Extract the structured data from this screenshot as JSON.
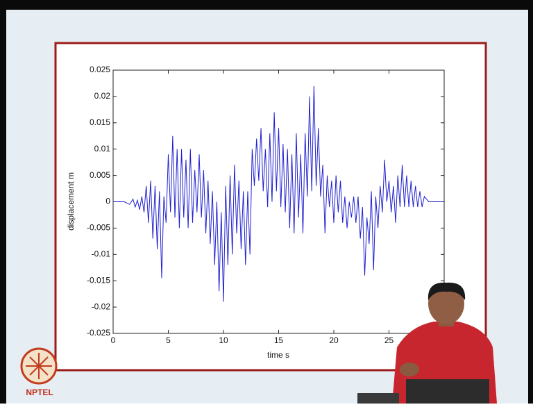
{
  "chart_data": {
    "type": "line",
    "xlabel": "time s",
    "ylabel": "displacement m",
    "x": [
      0,
      1,
      1.5,
      1.8,
      2.0,
      2.2,
      2.4,
      2.6,
      2.8,
      3.0,
      3.2,
      3.4,
      3.6,
      3.8,
      4.0,
      4.2,
      4.4,
      4.6,
      4.8,
      5.0,
      5.2,
      5.4,
      5.6,
      5.8,
      6.0,
      6.2,
      6.4,
      6.6,
      6.8,
      7.0,
      7.2,
      7.4,
      7.6,
      7.8,
      8.0,
      8.2,
      8.4,
      8.6,
      8.8,
      9.0,
      9.2,
      9.4,
      9.6,
      9.8,
      10.0,
      10.2,
      10.4,
      10.6,
      10.8,
      11.0,
      11.2,
      11.4,
      11.6,
      11.8,
      12.0,
      12.2,
      12.4,
      12.6,
      12.8,
      13.0,
      13.2,
      13.4,
      13.6,
      13.8,
      14.0,
      14.2,
      14.4,
      14.6,
      14.8,
      15.0,
      15.2,
      15.4,
      15.6,
      15.8,
      16.0,
      16.2,
      16.4,
      16.6,
      16.8,
      17.0,
      17.2,
      17.4,
      17.6,
      17.8,
      18.0,
      18.2,
      18.4,
      18.6,
      18.8,
      19.0,
      19.2,
      19.4,
      19.6,
      19.8,
      20.0,
      20.2,
      20.4,
      20.6,
      20.8,
      21.0,
      21.2,
      21.4,
      21.6,
      21.8,
      22.0,
      22.2,
      22.4,
      22.6,
      22.8,
      23.0,
      23.2,
      23.4,
      23.6,
      23.8,
      24.0,
      24.2,
      24.4,
      24.6,
      24.8,
      25.0,
      25.2,
      25.4,
      25.6,
      25.8,
      26.0,
      26.2,
      26.4,
      26.6,
      26.8,
      27.0,
      27.2,
      27.4,
      27.6,
      27.8,
      28.0,
      28.2,
      28.6,
      30
    ],
    "series": [
      {
        "color": "#2020d0",
        "values": [
          0,
          0,
          -0.0005,
          0.0005,
          -0.001,
          0.0003,
          -0.0015,
          0.001,
          -0.002,
          0.003,
          -0.004,
          0.004,
          -0.007,
          0.003,
          -0.009,
          0.002,
          -0.0145,
          0.001,
          -0.004,
          0.009,
          -0.002,
          0.0125,
          -0.003,
          0.01,
          -0.005,
          0.01,
          -0.003,
          0.008,
          -0.005,
          0.01,
          -0.004,
          0.006,
          -0.002,
          0.009,
          -0.003,
          0.006,
          -0.006,
          0.004,
          -0.008,
          0.002,
          -0.012,
          0,
          -0.017,
          -0.002,
          -0.019,
          0.003,
          -0.012,
          0.005,
          -0.01,
          0.007,
          -0.006,
          0.004,
          -0.009,
          0.002,
          -0.012,
          0.002,
          -0.01,
          0.01,
          0.003,
          0.012,
          0.004,
          0.014,
          0.002,
          0.01,
          -0.001,
          0.013,
          0,
          0.017,
          0.002,
          0.014,
          -0.001,
          0.011,
          -0.002,
          0.01,
          -0.005,
          0.009,
          -0.006,
          0.013,
          -0.003,
          0.009,
          -0.006,
          0.013,
          0.001,
          0.02,
          0.002,
          0.022,
          0.003,
          0.014,
          0.001,
          0.007,
          -0.006,
          0.005,
          -0.001,
          0.004,
          -0.004,
          0.005,
          -0.002,
          0.004,
          -0.004,
          0.001,
          -0.005,
          0,
          -0.003,
          0.001,
          -0.004,
          0.001,
          -0.007,
          -0.001,
          -0.014,
          -0.003,
          -0.008,
          0.002,
          -0.013,
          0.001,
          -0.005,
          0.003,
          -0.002,
          0.008,
          0,
          0.004,
          -0.002,
          0.003,
          -0.004,
          0.005,
          -0.001,
          0.007,
          -0.001,
          0.005,
          -0.001,
          0.004,
          -0.001,
          0.003,
          -0.001,
          0.002,
          -0.001,
          0.001,
          0,
          0
        ]
      }
    ],
    "xlim": [
      0,
      30
    ],
    "xticks": [
      0,
      5,
      10,
      15,
      20,
      25
    ],
    "ylim": [
      -0.025,
      0.025
    ],
    "yticks": [
      -0.025,
      -0.02,
      -0.015,
      -0.01,
      -0.005,
      0,
      0.005,
      0.01,
      0.015,
      0.02,
      0.025
    ]
  },
  "logo": "NPTEL"
}
